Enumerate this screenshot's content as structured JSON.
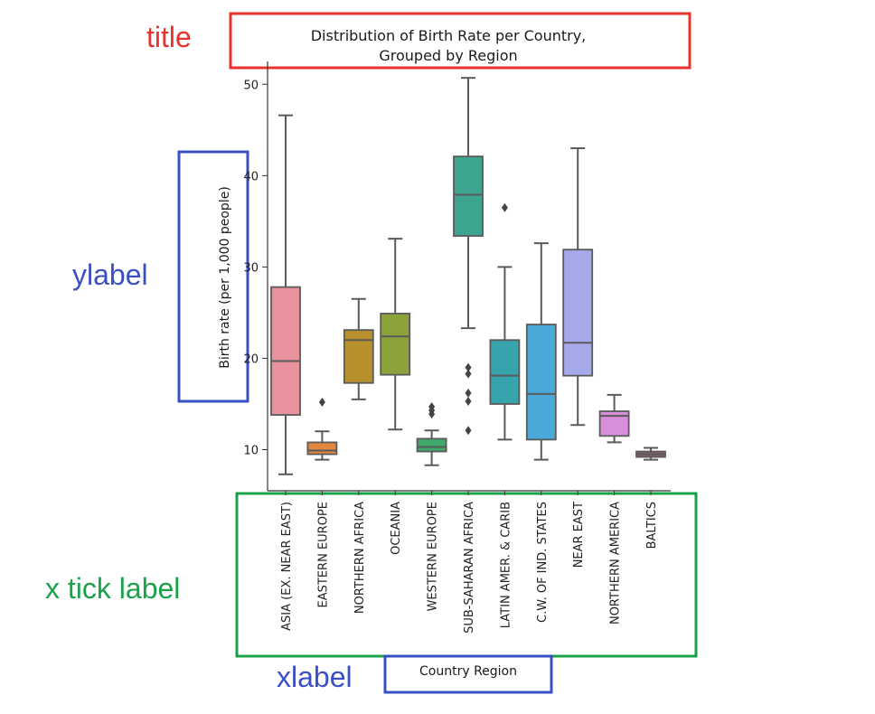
{
  "annotations": {
    "title_tag": "title",
    "ylabel_tag": "ylabel",
    "xtick_tag": "x tick label",
    "xlabel_tag": "xlabel"
  },
  "colors": {
    "title_annotation": "#e8322b",
    "ylabel_annotation": "#3b4fc4",
    "xtick_annotation": "#1aa14a",
    "xlabel_annotation": "#3b4fc4",
    "box_edge": "#5a5a5a"
  },
  "chart_data": {
    "type": "box",
    "title": "Distribution of Birth Rate per Country,\nGrouped by Region",
    "title_lines": [
      "Distribution of Birth Rate per Country,",
      "Grouped by Region"
    ],
    "xlabel": "Country Region",
    "ylabel": "Birth rate (per 1,000 people)",
    "ylim": [
      5.5,
      52.5
    ],
    "yticks": [
      10,
      20,
      30,
      40,
      50
    ],
    "categories": [
      "ASIA (EX. NEAR EAST)",
      "EASTERN EUROPE",
      "NORTHERN AFRICA",
      "OCEANIA",
      "WESTERN EUROPE",
      "SUB-SAHARAN AFRICA",
      "LATIN AMER. & CARIB",
      "C.W. OF IND. STATES",
      "NEAR EAST",
      "NORTHERN AMERICA",
      "BALTICS"
    ],
    "boxes": [
      {
        "whisker_low": 7.3,
        "q1": 13.8,
        "median": 19.7,
        "q3": 27.8,
        "whisker_high": 46.6,
        "outliers": [],
        "color": "#e8929d"
      },
      {
        "whisker_low": 8.9,
        "q1": 9.5,
        "median": 9.9,
        "q3": 10.8,
        "whisker_high": 12.0,
        "outliers": [
          15.2
        ],
        "color": "#e1873f"
      },
      {
        "whisker_low": 15.5,
        "q1": 17.3,
        "median": 22.0,
        "q3": 23.1,
        "whisker_high": 26.5,
        "outliers": [],
        "color": "#b6902b"
      },
      {
        "whisker_low": 12.2,
        "q1": 18.2,
        "median": 22.4,
        "q3": 24.9,
        "whisker_high": 33.1,
        "outliers": [],
        "color": "#8ca33c"
      },
      {
        "whisker_low": 8.3,
        "q1": 9.8,
        "median": 10.3,
        "q3": 11.2,
        "whisker_high": 12.1,
        "outliers": [
          13.9,
          14.3,
          14.7
        ],
        "color": "#3fab6a"
      },
      {
        "whisker_low": 23.3,
        "q1": 33.4,
        "median": 37.9,
        "q3": 42.1,
        "whisker_high": 50.7,
        "outliers": [
          12.1,
          15.3,
          16.2,
          18.3,
          19.0
        ],
        "color": "#3da58f"
      },
      {
        "whisker_low": 11.1,
        "q1": 15.0,
        "median": 18.1,
        "q3": 22.0,
        "whisker_high": 30.0,
        "outliers": [
          36.5
        ],
        "color": "#36a3ad"
      },
      {
        "whisker_low": 8.9,
        "q1": 11.1,
        "median": 16.1,
        "q3": 23.7,
        "whisker_high": 32.6,
        "outliers": [],
        "color": "#4aa9d8"
      },
      {
        "whisker_low": 12.7,
        "q1": 18.1,
        "median": 21.7,
        "q3": 31.9,
        "whisker_high": 43.0,
        "outliers": [],
        "color": "#a6aaeb"
      },
      {
        "whisker_low": 10.8,
        "q1": 11.5,
        "median": 13.7,
        "q3": 14.2,
        "whisker_high": 16.0,
        "outliers": [],
        "color": "#d88fdc"
      },
      {
        "whisker_low": 8.9,
        "q1": 9.2,
        "median": 9.5,
        "q3": 9.8,
        "whisker_high": 10.2,
        "outliers": [],
        "color": "#8c5f6e"
      }
    ],
    "legend": "none",
    "grid": false
  }
}
